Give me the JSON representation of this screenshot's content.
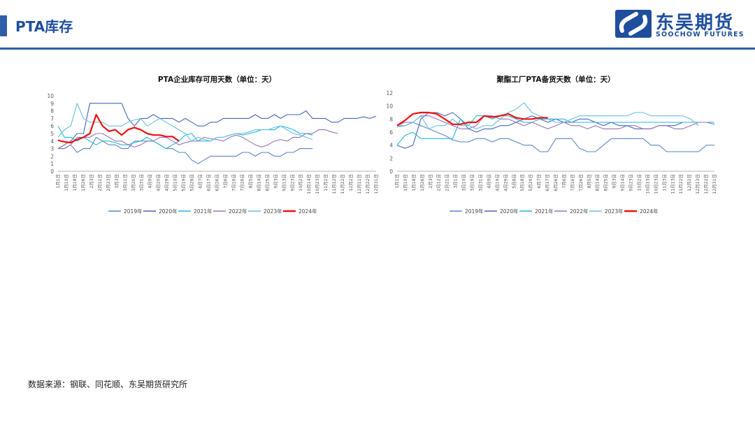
{
  "header": {
    "title": "PTA库存",
    "logo_cn": "东吴期货",
    "logo_en": "SOOCHOW FUTURES"
  },
  "footer": {
    "source": "数据来源：钢联、同花顺、东吴期货研究所"
  },
  "colors": {
    "brand": "#1f4e9c",
    "2019": "#5b86c5",
    "2020": "#4466bb",
    "2021": "#22b6de",
    "2022": "#9573b8",
    "2023": "#68bfdc",
    "2024": "#ee1111"
  },
  "chart_data": [
    {
      "type": "line",
      "title": "PTA企业库存可用天数（单位：天）",
      "ylim": [
        0,
        10
      ],
      "yticks": [
        "0",
        "1",
        "2",
        "3",
        "4",
        "5",
        "6",
        "7",
        "8",
        "9",
        "10"
      ],
      "xtick_labels": [
        "1月1日",
        "1月10日",
        "1月18日",
        "1月26日",
        "2月3日",
        "2月11日",
        "2月23日",
        "3月3日",
        "3月11日",
        "3月20日",
        "3月31日",
        "4月9日",
        "4月20日",
        "4月29日",
        "5月10日",
        "5月19日",
        "5月28日",
        "6月7日",
        "6月17日",
        "6月26日",
        "7月6日",
        "7月16日",
        "7月26日",
        "8月5日",
        "8月14日",
        "8月25日",
        "9月3日",
        "9月13日",
        "9月23日",
        "10月2日",
        "10月14日",
        "10月23日",
        "11月2日",
        "11月12日",
        "11月22日",
        "12月2日",
        "12月11日",
        "12月22日",
        "12月31日"
      ],
      "legend": [
        "2019年",
        "2020年",
        "2021年",
        "2022年",
        "2023年",
        "2024年"
      ],
      "series": [
        {
          "name": "2019年",
          "values": [
            3,
            3,
            3.5,
            2.5,
            3,
            3,
            4.5,
            4,
            3.5,
            3.5,
            3,
            3,
            4,
            4,
            4,
            4,
            3.5,
            3,
            3,
            2.5,
            2.5,
            1.5,
            1,
            1.5,
            2,
            2,
            2,
            2,
            2,
            2.5,
            2.5,
            2,
            2.5,
            2.5,
            2,
            2,
            2.5,
            2.5,
            3,
            3,
            3
          ]
        },
        {
          "name": "2020年",
          "values": [
            3,
            3.5,
            4,
            5,
            5,
            9,
            9,
            9,
            9,
            9,
            9,
            7,
            6,
            7,
            7,
            7.5,
            7,
            7,
            7,
            6.5,
            7,
            6.5,
            6,
            6,
            6.5,
            6.5,
            7,
            7,
            7,
            7,
            7,
            7.5,
            7,
            7,
            7.5,
            7,
            7.5,
            7.5,
            7.5,
            8,
            7,
            7,
            7,
            6.5,
            6.5,
            7,
            7,
            7,
            7.2,
            7,
            7.3
          ]
        },
        {
          "name": "2021年",
          "values": [
            6,
            4.5,
            4.5,
            4,
            4.5,
            4,
            3.5,
            4,
            4,
            3.8,
            3.5,
            3.5,
            3.8,
            4,
            4.5,
            4,
            3.5,
            3,
            3.5,
            4,
            4.8,
            5,
            4,
            4,
            4,
            4.5,
            4.5,
            4.8,
            5,
            4.8,
            5,
            5.2,
            5.5,
            5.5,
            5.5,
            6,
            5.8,
            5.5,
            5,
            5,
            4.8
          ]
        },
        {
          "name": "2022年",
          "values": [
            3,
            3,
            3.5,
            4.5,
            4.5,
            4.5,
            5,
            5,
            4.5,
            4,
            4,
            3.5,
            3.2,
            3.5,
            4,
            4,
            4.5,
            4.5,
            4,
            3.5,
            3.8,
            4,
            4,
            4.5,
            4.3,
            4.2,
            4,
            4.5,
            4.8,
            4.5,
            4,
            3.5,
            3.2,
            3.5,
            4,
            4.2,
            4,
            4.5,
            4.5,
            5,
            5,
            5.5,
            5.5,
            5.2,
            5
          ]
        },
        {
          "name": "2023年",
          "values": [
            4.5,
            5.5,
            6,
            9,
            7,
            6.5,
            6.5,
            6.5,
            6,
            6,
            6,
            6.5,
            6.8,
            7,
            6,
            6.5,
            7,
            6.5,
            6,
            5.5,
            5,
            4,
            4.5,
            4.2,
            4,
            4.5,
            4.5,
            4.8,
            5,
            5,
            5.2,
            5.5,
            5.5,
            5.5,
            5.8,
            6,
            5.5,
            5,
            4.8,
            4.5,
            4.2
          ]
        },
        {
          "name": "2024年",
          "values": [
            4.1,
            3.9,
            3.8,
            4.2,
            4.5,
            5,
            7.5,
            6,
            5.3,
            5.5,
            4.8,
            5.5,
            5.8,
            5.5,
            5,
            4.8,
            4.8,
            4.6,
            4.6,
            4
          ]
        }
      ]
    },
    {
      "type": "line",
      "title": "聚酯工厂PTA备货天数（单位：天）",
      "ylim": [
        0,
        12
      ],
      "yticks": [
        "0",
        "2",
        "4",
        "6",
        "8",
        "10",
        "12"
      ],
      "xtick_labels": [
        "1月1日",
        "1月10日",
        "1月18日",
        "1月26日",
        "2月3日",
        "2月12日",
        "2月21日",
        "3月1日",
        "3月10日",
        "3月19日",
        "3月31日",
        "4月9日",
        "4月19日",
        "4月29日",
        "5月8日",
        "5月18日",
        "5月29日",
        "6月7日",
        "6月17日",
        "6月26日",
        "7月6日",
        "7月16日",
        "7月26日",
        "8月5日",
        "8月14日",
        "8月25日",
        "9月3日",
        "9月14日",
        "9月23日",
        "10月2日",
        "10月13日",
        "10月23日",
        "11月3日",
        "11月13日",
        "11月22日",
        "12月2日",
        "12月13日",
        "12月22日",
        "12月31日"
      ],
      "legend": [
        "2019年",
        "2020年",
        "2021年",
        "2022年",
        "2023年",
        "2024年"
      ],
      "series": [
        {
          "name": "2019年",
          "values": [
            6.8,
            7,
            7.5,
            7,
            6.5,
            6,
            5.5,
            4.8,
            4.5,
            4.5,
            5,
            5,
            4.5,
            5,
            5,
            4.5,
            4,
            4,
            3,
            3,
            5,
            5,
            5,
            3.5,
            3,
            3,
            4,
            5,
            5,
            5,
            5,
            5,
            4,
            4,
            3,
            3,
            3,
            3,
            3,
            4,
            4
          ]
        },
        {
          "name": "2020年",
          "values": [
            4,
            3.5,
            4,
            8,
            9,
            9,
            8.5,
            9,
            8,
            6.5,
            6,
            6.5,
            6.5,
            7,
            7,
            7.5,
            8,
            8.5,
            8,
            7.5,
            8,
            7.5,
            7.5,
            8,
            8,
            7.5,
            7,
            7.5,
            7,
            7,
            6.5,
            6.5,
            6.5,
            7,
            7,
            7,
            7.5,
            7.5,
            7.5,
            7.5,
            7.5
          ]
        },
        {
          "name": "2021年",
          "values": [
            4,
            5.5,
            6,
            5,
            5,
            5,
            5,
            5,
            8,
            7,
            8.5,
            8.5,
            8,
            8.5,
            8.5,
            8,
            7.5,
            7.5,
            8,
            8,
            8,
            8,
            7.5,
            7.5,
            7.5,
            7.5,
            7.5,
            7.5,
            7.5,
            7.5,
            7.5,
            7.5,
            7.5,
            7.5,
            7.5,
            7.5,
            7.5,
            7.5,
            7.5,
            7.5,
            7.2
          ]
        },
        {
          "name": "2022年",
          "values": [
            7,
            7.5,
            7.5,
            8.5,
            8.5,
            8,
            7.5,
            7,
            6.5,
            6.5,
            7,
            8.5,
            8.5,
            8,
            8,
            7.5,
            7,
            7.5,
            7,
            6.5,
            7,
            7.5,
            7,
            7,
            6.5,
            7,
            6.5,
            6.5,
            6.5,
            7,
            7,
            6.5,
            6.5,
            7,
            7,
            6.5,
            6.5,
            7,
            7.5,
            7.5,
            7.5
          ]
        },
        {
          "name": "2023年",
          "values": [
            7,
            7,
            7.5,
            8.5,
            6.5,
            7,
            7,
            8,
            7,
            7,
            6.5,
            7,
            7,
            8,
            9,
            9.5,
            10.5,
            9,
            8.5,
            8,
            7.5,
            7.5,
            8,
            8.5,
            8.5,
            8.5,
            8.5,
            8.5,
            8.5,
            8.5,
            9,
            9,
            8.5,
            8.5,
            8.5,
            8.5,
            8.5,
            8,
            7
          ]
        },
        {
          "name": "2024年",
          "values": [
            7,
            7.8,
            8.8,
            9,
            9,
            8.8,
            8,
            7.2,
            7.2,
            7.5,
            7.5,
            8.5,
            8.3,
            8.5,
            8.8,
            8.2,
            8,
            8,
            8.2,
            8.2
          ]
        }
      ]
    }
  ]
}
